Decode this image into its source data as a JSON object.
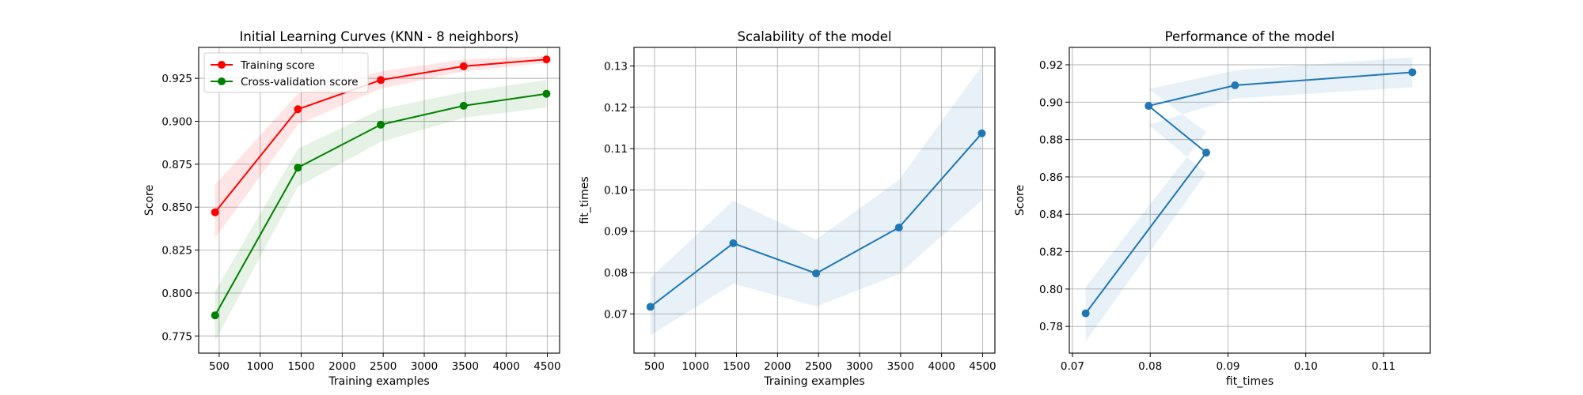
{
  "chart_data": [
    {
      "type": "line",
      "title": "Initial Learning Curves (KNN - 8 neighbors)",
      "xlabel": "Training examples",
      "ylabel": "Score",
      "xlim": [
        250,
        4650
      ],
      "ylim": [
        0.765,
        0.943
      ],
      "xticks": [
        500,
        1000,
        1500,
        2000,
        2500,
        3000,
        3500,
        4000,
        4500
      ],
      "yticks": [
        0.775,
        0.8,
        0.825,
        0.85,
        0.875,
        0.9,
        0.925
      ],
      "ytick_decimals": 3,
      "grid": true,
      "legend": "upper-left",
      "series": [
        {
          "name": "Training score",
          "color": "#ff0000",
          "x": [
            450,
            1460,
            2470,
            3480,
            4490
          ],
          "y": [
            0.847,
            0.907,
            0.924,
            0.932,
            0.936
          ],
          "y_lower": [
            0.832,
            0.898,
            0.919,
            0.929,
            0.934
          ],
          "y_upper": [
            0.863,
            0.916,
            0.929,
            0.936,
            0.938
          ]
        },
        {
          "name": "Cross-validation score",
          "color": "#008000",
          "x": [
            450,
            1460,
            2470,
            3480,
            4490
          ],
          "y": [
            0.787,
            0.873,
            0.898,
            0.909,
            0.916
          ],
          "y_lower": [
            0.772,
            0.862,
            0.888,
            0.902,
            0.908
          ],
          "y_upper": [
            0.801,
            0.884,
            0.907,
            0.917,
            0.924
          ]
        }
      ]
    },
    {
      "type": "line",
      "title": "Scalability of the model",
      "xlabel": "Training examples",
      "ylabel": "fit_times",
      "xlim": [
        250,
        4650
      ],
      "ylim": [
        0.0605,
        0.1345
      ],
      "xticks": [
        500,
        1000,
        1500,
        2000,
        2500,
        3000,
        3500,
        4000,
        4500
      ],
      "yticks": [
        0.07,
        0.08,
        0.09,
        0.1,
        0.11,
        0.12,
        0.13
      ],
      "ytick_decimals": 2,
      "grid": true,
      "series": [
        {
          "color": "#1f77b4",
          "x": [
            450,
            1460,
            2470,
            3480,
            4490
          ],
          "y": [
            0.0717,
            0.0871,
            0.0798,
            0.0909,
            0.1137
          ],
          "y_lower": [
            0.0648,
            0.0773,
            0.0718,
            0.0796,
            0.0975
          ],
          "y_upper": [
            0.0787,
            0.0974,
            0.088,
            0.1024,
            0.13
          ]
        }
      ]
    },
    {
      "type": "line",
      "title": "Performance of the model",
      "xlabel": "fit_times",
      "ylabel": "Score",
      "xlim": [
        0.0696,
        0.116
      ],
      "ylim": [
        0.7657,
        0.9293
      ],
      "xticks": [
        0.07,
        0.08,
        0.09,
        0.1,
        0.11
      ],
      "yticks": [
        0.78,
        0.8,
        0.82,
        0.84,
        0.86,
        0.88,
        0.9,
        0.92
      ],
      "xtick_decimals": 2,
      "ytick_decimals": 2,
      "grid": true,
      "series": [
        {
          "color": "#1f77b4",
          "x": [
            0.0717,
            0.0872,
            0.0798,
            0.0909,
            0.1137
          ],
          "y": [
            0.787,
            0.873,
            0.898,
            0.909,
            0.916
          ],
          "y_lower": [
            0.772,
            0.862,
            0.888,
            0.902,
            0.908
          ],
          "y_upper": [
            0.801,
            0.884,
            0.907,
            0.917,
            0.924
          ]
        }
      ]
    }
  ]
}
